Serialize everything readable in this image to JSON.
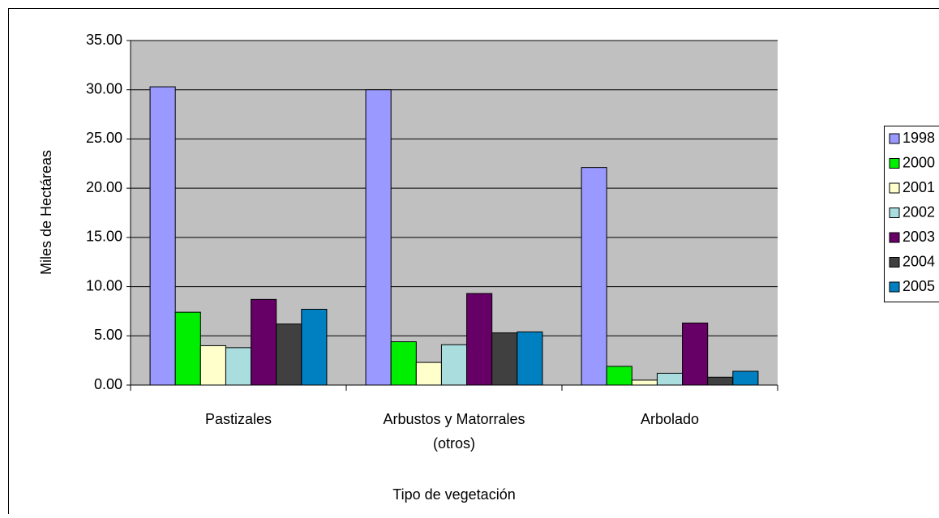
{
  "chart_data": {
    "type": "bar",
    "x_label": "Tipo de vegetación",
    "y_label": "Miles de Hectáreas",
    "categories": [
      "Pastizales",
      "Arbustos y Matorrales (otros)",
      "Arbolado"
    ],
    "series": [
      {
        "name": "1998",
        "color": "#9999ff",
        "values": [
          30.3,
          30.0,
          22.1
        ]
      },
      {
        "name": "2000",
        "color": "#00ee00",
        "values": [
          7.4,
          4.4,
          1.9
        ]
      },
      {
        "name": "2001",
        "color": "#ffffcc",
        "values": [
          4.0,
          2.3,
          0.5
        ]
      },
      {
        "name": "2002",
        "color": "#aadddd",
        "values": [
          3.8,
          4.1,
          1.2
        ]
      },
      {
        "name": "2003",
        "color": "#660066",
        "values": [
          8.7,
          9.3,
          6.3
        ]
      },
      {
        "name": "2004",
        "color": "#404040",
        "values": [
          6.2,
          5.3,
          0.8
        ]
      },
      {
        "name": "2005",
        "color": "#0080c0",
        "values": [
          7.7,
          5.4,
          1.4
        ]
      }
    ],
    "ylim": [
      0,
      35
    ],
    "yticks": [
      {
        "value": 0,
        "label": "0.00"
      },
      {
        "value": 5,
        "label": "5.00"
      },
      {
        "value": 10,
        "label": "10.00"
      },
      {
        "value": 15,
        "label": "15.00"
      },
      {
        "value": 20,
        "label": "20.00"
      },
      {
        "value": 25,
        "label": "25.00"
      },
      {
        "value": 30,
        "label": "30.00"
      },
      {
        "value": 35,
        "label": "35.00"
      }
    ],
    "grid": true,
    "legend": "right"
  }
}
